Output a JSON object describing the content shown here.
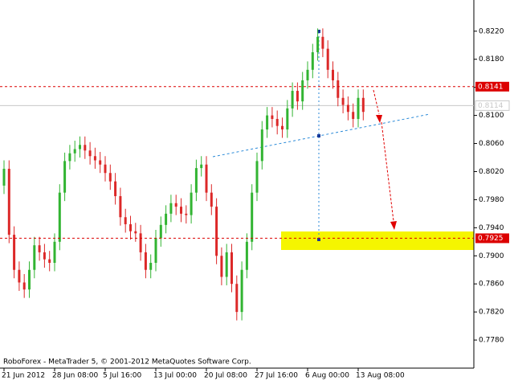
{
  "chart_data": {
    "type": "candlestick",
    "annotation": "RoboForex - MetaTrader 5, © 2001-2012 MetaQuotes Software Corp.",
    "categories": [
      "21 Jun 2012",
      null,
      null,
      null,
      null,
      null,
      null,
      null,
      null,
      null,
      "28 Jun 08:00",
      null,
      null,
      null,
      null,
      null,
      null,
      null,
      null,
      null,
      "5 Jul 16:00",
      null,
      null,
      null,
      null,
      null,
      null,
      null,
      null,
      null,
      "13 Jul 00:00",
      null,
      null,
      null,
      null,
      null,
      null,
      null,
      null,
      null,
      "20 Jul 08:00",
      null,
      null,
      null,
      null,
      null,
      null,
      null,
      null,
      null,
      "27 Jul 16:00",
      null,
      null,
      null,
      null,
      null,
      null,
      null,
      null,
      null,
      "6 Aug 00:00",
      null,
      null,
      null,
      null,
      null,
      null,
      null,
      null,
      null,
      "13 Aug 08:00",
      null
    ],
    "open": [
      0.8,
      0.8024,
      0.793,
      0.788,
      0.7862,
      0.7852,
      0.788,
      0.7915,
      0.7905,
      0.7895,
      0.789,
      0.792,
      0.799,
      0.8035,
      0.8046,
      0.8052,
      0.8058,
      0.805,
      0.8042,
      0.8036,
      0.803,
      0.8018,
      0.8006,
      0.7985,
      0.7955,
      0.7945,
      0.7935,
      0.7932,
      0.7905,
      0.788,
      0.789,
      0.7925,
      0.7944,
      0.796,
      0.7975,
      0.797,
      0.796,
      0.7958,
      0.799,
      0.8025,
      0.803,
      0.799,
      0.797,
      0.79,
      0.787,
      0.7905,
      0.786,
      0.782,
      0.788,
      0.792,
      0.799,
      0.8035,
      0.808,
      0.81,
      0.8095,
      0.8085,
      0.808,
      0.811,
      0.8135,
      0.812,
      0.815,
      0.8165,
      0.819,
      0.8212,
      0.8195,
      0.8165,
      0.815,
      0.8125,
      0.8115,
      0.8105,
      0.8095,
      0.8125
    ],
    "high": [
      0.8036,
      0.8036,
      0.7942,
      0.7892,
      0.7874,
      0.7892,
      0.7927,
      0.7927,
      0.7917,
      0.7907,
      0.7932,
      0.8002,
      0.8047,
      0.8058,
      0.8064,
      0.807,
      0.807,
      0.8062,
      0.8054,
      0.8048,
      0.8042,
      0.803,
      0.8018,
      0.7997,
      0.7967,
      0.7957,
      0.7947,
      0.7944,
      0.7917,
      0.7902,
      0.7937,
      0.7956,
      0.7972,
      0.7987,
      0.7987,
      0.7982,
      0.7972,
      0.8002,
      0.8037,
      0.8042,
      0.8042,
      0.8002,
      0.7982,
      0.7912,
      0.7917,
      0.7917,
      0.7872,
      0.7892,
      0.7932,
      0.8002,
      0.8047,
      0.8092,
      0.8112,
      0.8112,
      0.8107,
      0.8097,
      0.8122,
      0.8147,
      0.8147,
      0.8162,
      0.8177,
      0.8202,
      0.8224,
      0.8224,
      0.8207,
      0.8177,
      0.8162,
      0.8137,
      0.8127,
      0.8117,
      0.8137,
      0.8137
    ],
    "low": [
      0.7988,
      0.7918,
      0.7868,
      0.785,
      0.784,
      0.784,
      0.7868,
      0.7893,
      0.7883,
      0.7878,
      0.7878,
      0.7908,
      0.7978,
      0.8023,
      0.8034,
      0.804,
      0.8038,
      0.803,
      0.8024,
      0.8018,
      0.8006,
      0.7994,
      0.7973,
      0.7943,
      0.7933,
      0.7923,
      0.792,
      0.7893,
      0.7868,
      0.7868,
      0.7878,
      0.7913,
      0.7932,
      0.7948,
      0.7958,
      0.7948,
      0.7946,
      0.7946,
      0.7978,
      0.8013,
      0.7978,
      0.7958,
      0.7888,
      0.7858,
      0.7858,
      0.7848,
      0.7808,
      0.7808,
      0.7868,
      0.7908,
      0.7978,
      0.8023,
      0.8068,
      0.8083,
      0.8073,
      0.8068,
      0.8068,
      0.8098,
      0.8108,
      0.8108,
      0.8138,
      0.8153,
      0.8178,
      0.8183,
      0.8153,
      0.8138,
      0.8113,
      0.8103,
      0.8093,
      0.8083,
      0.8083,
      0.8093
    ],
    "close": [
      0.8024,
      0.793,
      0.788,
      0.7862,
      0.7852,
      0.788,
      0.7915,
      0.7905,
      0.7895,
      0.789,
      0.792,
      0.799,
      0.8035,
      0.8046,
      0.8052,
      0.8058,
      0.805,
      0.8042,
      0.8036,
      0.803,
      0.8018,
      0.8006,
      0.7985,
      0.7955,
      0.7945,
      0.7935,
      0.7932,
      0.7905,
      0.788,
      0.789,
      0.7925,
      0.7944,
      0.796,
      0.7975,
      0.797,
      0.796,
      0.7958,
      0.799,
      0.8025,
      0.803,
      0.799,
      0.797,
      0.79,
      0.787,
      0.7905,
      0.786,
      0.782,
      0.788,
      0.792,
      0.799,
      0.8035,
      0.808,
      0.81,
      0.8095,
      0.8085,
      0.808,
      0.811,
      0.8135,
      0.812,
      0.815,
      0.8165,
      0.819,
      0.8212,
      0.8195,
      0.8165,
      0.815,
      0.8125,
      0.8115,
      0.8105,
      0.8095,
      0.8125,
      0.8105
    ],
    "up_color": "#32b432",
    "down_color": "#dc2828",
    "levels": [
      {
        "value": 0.8141,
        "label": "0.8141",
        "color": "#dc0000"
      },
      {
        "value": 0.7925,
        "label": "0.7925",
        "color": "#dc0000"
      }
    ],
    "bid": {
      "value": 0.8114,
      "label": "0.8114",
      "color": "#c8c8c8"
    },
    "ylim": [
      0.774,
      0.8261
    ],
    "yticks": [
      {
        "value": 0.778,
        "label": "0.7780"
      },
      {
        "value": 0.782,
        "label": "0.7820"
      },
      {
        "value": 0.786,
        "label": "0.7860"
      },
      {
        "value": 0.79,
        "label": "0.7900"
      },
      {
        "value": 0.794,
        "label": "0.7940"
      },
      {
        "value": 0.798,
        "label": "0.7980"
      },
      {
        "value": 0.802,
        "label": "0.8020"
      },
      {
        "value": 0.806,
        "label": "0.8060"
      },
      {
        "value": 0.81,
        "label": "0.8100"
      },
      {
        "value": 0.814,
        "label": "0.8140"
      },
      {
        "value": 0.818,
        "label": "0.8180"
      },
      {
        "value": 0.822,
        "label": "0.8220"
      }
    ],
    "grid": false
  }
}
